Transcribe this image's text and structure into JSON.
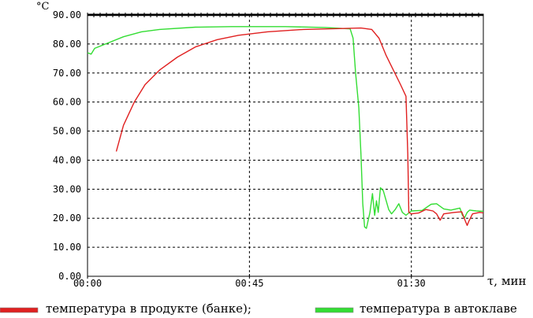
{
  "chart_data": {
    "type": "line",
    "y_unit_label": "°C",
    "x_axis_label": "τ, мин",
    "ylim": [
      0,
      90
    ],
    "xlim_minutes": [
      0,
      110
    ],
    "y_ticks": [
      "0.00",
      "10.00",
      "20.00",
      "30.00",
      "40.00",
      "50.00",
      "60.00",
      "70.00",
      "80.00",
      "90.00"
    ],
    "x_ticks": [
      {
        "label": "00:00",
        "minutes": 0
      },
      {
        "label": "00:45",
        "minutes": 45
      },
      {
        "label": "01:30",
        "minutes": 90
      }
    ],
    "grid": "dashed, every 10 °C and every 45 min",
    "legend_placement": "bottom",
    "series": [
      {
        "name": "температура в продукте (банке);",
        "color": "#e02020",
        "points": [
          [
            8,
            43
          ],
          [
            10,
            52
          ],
          [
            13,
            60
          ],
          [
            16,
            66
          ],
          [
            20,
            71
          ],
          [
            25,
            75.5
          ],
          [
            30,
            79
          ],
          [
            36,
            81.5
          ],
          [
            42,
            83
          ],
          [
            50,
            84.2
          ],
          [
            60,
            85
          ],
          [
            70,
            85.3
          ],
          [
            76,
            85.5
          ],
          [
            79,
            85
          ],
          [
            81,
            82
          ],
          [
            83,
            76
          ],
          [
            85,
            71
          ],
          [
            87,
            66
          ],
          [
            88.5,
            62
          ],
          [
            89,
            42
          ],
          [
            89.3,
            22
          ],
          [
            90,
            21.5
          ],
          [
            92,
            21.8
          ],
          [
            94,
            23
          ],
          [
            96,
            22.5
          ],
          [
            97,
            21.5
          ],
          [
            98,
            19.3
          ],
          [
            99,
            21.5
          ],
          [
            102,
            22
          ],
          [
            104,
            22.2
          ],
          [
            105,
            19
          ],
          [
            105.5,
            17.5
          ],
          [
            106,
            19
          ],
          [
            107,
            21.5
          ],
          [
            109,
            22
          ],
          [
            110,
            21.8
          ]
        ]
      },
      {
        "name": "температура в автоклаве",
        "color": "#33dd33",
        "points": [
          [
            0,
            77
          ],
          [
            1,
            76.5
          ],
          [
            2,
            78.5
          ],
          [
            5,
            80
          ],
          [
            10,
            82.5
          ],
          [
            15,
            84.2
          ],
          [
            20,
            85
          ],
          [
            30,
            85.8
          ],
          [
            40,
            86
          ],
          [
            55,
            86
          ],
          [
            66,
            85.7
          ],
          [
            73,
            85.2
          ],
          [
            73.8,
            82
          ],
          [
            74.5,
            70
          ],
          [
            75.4,
            58
          ],
          [
            76,
            42
          ],
          [
            76.5,
            25
          ],
          [
            77,
            17
          ],
          [
            77.5,
            16.5
          ],
          [
            78.5,
            22
          ],
          [
            79.2,
            28.5
          ],
          [
            79.8,
            21
          ],
          [
            80.3,
            26
          ],
          [
            80.8,
            22
          ],
          [
            81.4,
            30.5
          ],
          [
            82.2,
            29.5
          ],
          [
            83,
            26
          ],
          [
            83.7,
            23
          ],
          [
            84.5,
            21.5
          ],
          [
            85.5,
            23
          ],
          [
            86.5,
            25
          ],
          [
            87.5,
            22
          ],
          [
            88.5,
            21
          ],
          [
            90,
            22.5
          ],
          [
            93,
            22.7
          ],
          [
            95.5,
            24.8
          ],
          [
            97,
            25
          ],
          [
            99,
            23.2
          ],
          [
            101,
            22.8
          ],
          [
            103.5,
            23.5
          ],
          [
            104.2,
            21
          ],
          [
            104.8,
            20.2
          ],
          [
            105.5,
            22
          ],
          [
            106.2,
            22.8
          ],
          [
            108,
            22.5
          ],
          [
            110,
            22.4
          ]
        ]
      }
    ]
  }
}
